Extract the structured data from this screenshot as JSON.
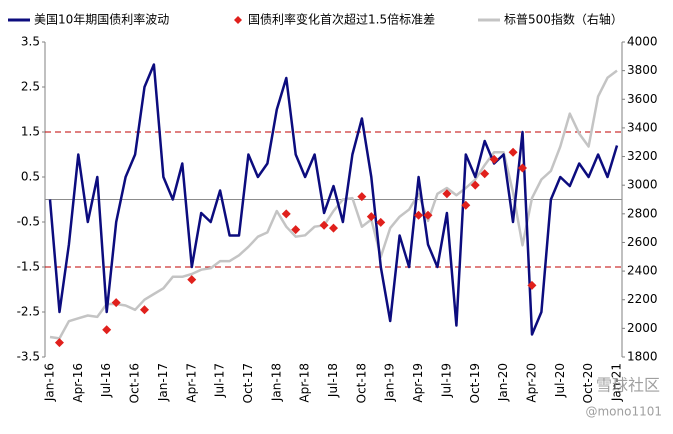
{
  "chart_data": {
    "type": "line",
    "legend": "top",
    "categories": [
      "Jan-16",
      null,
      null,
      "Apr-16",
      null,
      null,
      "Jul-16",
      null,
      null,
      "Oct-16",
      null,
      null,
      "Jan-17",
      null,
      null,
      "Apr-17",
      null,
      null,
      "Jul-17",
      null,
      null,
      "Oct-17",
      null,
      null,
      "Jan-18",
      null,
      null,
      "Apr-18",
      null,
      null,
      "Jul-18",
      null,
      null,
      "Oct-18",
      null,
      null,
      "Jan-19",
      null,
      null,
      "Apr-19",
      null,
      null,
      "Jul-19",
      null,
      null,
      "Oct-19",
      null,
      null,
      "Jan-20",
      null,
      null,
      "Apr-20",
      null,
      null,
      "Jul-20",
      null,
      null,
      "Oct-20",
      null,
      null,
      "Jan-21"
    ],
    "series": [
      {
        "name": "美国10年期国债利率波动",
        "type": "line",
        "color": "#0c0c7e",
        "axis": "y",
        "values": [
          0,
          -2.5,
          -1.0,
          1.0,
          -0.5,
          0.5,
          -2.5,
          -0.5,
          0.5,
          1.0,
          2.5,
          3.0,
          0.5,
          0,
          0.8,
          -1.5,
          -0.3,
          -0.5,
          0.2,
          -0.8,
          -0.8,
          1.0,
          0.5,
          0.8,
          2.0,
          2.7,
          1.0,
          0.5,
          1.0,
          -0.3,
          0.3,
          -0.5,
          1.0,
          1.8,
          0.5,
          -1.5,
          -2.7,
          -0.8,
          -1.5,
          0.5,
          -1.0,
          -1.5,
          -0.3,
          -2.8,
          1.0,
          0.5,
          1.3,
          0.8,
          1.0,
          -0.5,
          1.5,
          -3.0,
          -2.5,
          0,
          0.5,
          0.3,
          0.8,
          0.5,
          1.0,
          0.5,
          1.2
        ]
      },
      {
        "name": "国债利率变化首次超过1.5倍标准差",
        "type": "scatter",
        "color": "#e0201c",
        "axis": "y2",
        "values": [
          null,
          1900,
          null,
          null,
          null,
          null,
          1990,
          2180,
          null,
          null,
          2130,
          null,
          null,
          null,
          null,
          2340,
          null,
          null,
          null,
          null,
          null,
          null,
          null,
          null,
          null,
          2800,
          2690,
          null,
          null,
          2720,
          2700,
          null,
          null,
          2920,
          2780,
          2740,
          null,
          null,
          null,
          2790,
          2790,
          null,
          2940,
          null,
          2860,
          3000,
          3080,
          3180,
          null,
          3230,
          3120,
          2300,
          null,
          null,
          null,
          null,
          null,
          null,
          null,
          null,
          null
        ]
      },
      {
        "name": "标普500指数（右轴）",
        "type": "line",
        "color": "#c4c4c4",
        "axis": "y2",
        "values": [
          1940,
          1930,
          2050,
          2070,
          2090,
          2080,
          2170,
          2170,
          2160,
          2130,
          2200,
          2240,
          2280,
          2360,
          2360,
          2380,
          2410,
          2420,
          2470,
          2470,
          2510,
          2570,
          2640,
          2670,
          2820,
          2710,
          2640,
          2650,
          2710,
          2720,
          2820,
          2900,
          2910,
          2710,
          2760,
          2500,
          2700,
          2780,
          2830,
          2940,
          2750,
          2940,
          2980,
          2930,
          2980,
          3040,
          3140,
          3230,
          3230,
          2950,
          2580,
          2910,
          3040,
          3100,
          3270,
          3500,
          3360,
          3270,
          3620,
          3750,
          3800
        ]
      }
    ],
    "ylim": [
      -3.5,
      3.5
    ],
    "yticks": [
      -3.5,
      -2.5,
      -1.5,
      -0.5,
      0.5,
      1.5,
      2.5,
      3.5
    ],
    "y2lim": [
      1800,
      4000
    ],
    "y2ticks": [
      1800,
      2000,
      2200,
      2400,
      2600,
      2800,
      3000,
      3200,
      3400,
      3600,
      3800,
      4000
    ],
    "reference_lines": [
      {
        "value": 1.5,
        "color": "#c00000",
        "dashed": true
      },
      {
        "value": -1.5,
        "color": "#c00000",
        "dashed": true
      },
      {
        "value": 0,
        "color": "#8c8c8c",
        "dashed": false
      }
    ],
    "watermark": [
      "雪球社区",
      "@mono1101"
    ]
  }
}
